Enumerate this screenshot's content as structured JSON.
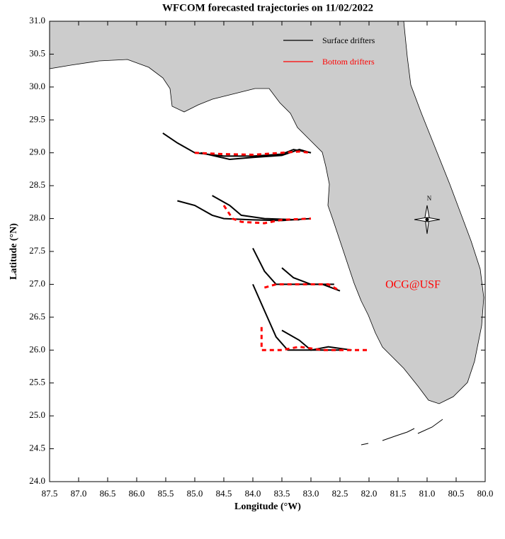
{
  "chart_data": {
    "type": "map",
    "title": "WFCOM forecasted trajectories on 11/02/2022",
    "xlabel": "Longitude (°W)",
    "ylabel": "Latitude (°N)",
    "xlim": [
      87.5,
      80.0
    ],
    "ylim": [
      24.0,
      31.0
    ],
    "xticks": [
      87.5,
      {
        "value": 87,
        "label": "87.0"
      },
      86.5,
      {
        "value": 86,
        "label": "86.0"
      },
      85.5,
      {
        "value": 85,
        "label": "85.0"
      },
      84.5,
      {
        "value": 84,
        "label": "84.0"
      },
      83.5,
      {
        "value": 83,
        "label": "83.0"
      },
      82.5,
      {
        "value": 82,
        "label": "82.0"
      },
      81.5,
      {
        "value": 81,
        "label": "81.0"
      },
      80.5,
      {
        "value": 80,
        "label": "80.0"
      }
    ],
    "yticks": [
      {
        "value": 24,
        "label": "24.0"
      },
      24.5,
      {
        "value": 25,
        "label": "25.0"
      },
      25.5,
      {
        "value": 26,
        "label": "26.0"
      },
      26.5,
      {
        "value": 27,
        "label": "27.0"
      },
      27.5,
      {
        "value": 28,
        "label": "28.0"
      },
      28.5,
      {
        "value": 29,
        "label": "29.0"
      },
      29.5,
      {
        "value": 30,
        "label": "30.0"
      },
      30.5,
      {
        "value": 31,
        "label": "31.0"
      }
    ],
    "series": [
      {
        "name": "Surface drifters",
        "color": "#000000",
        "dashed": false,
        "tracks": [
          {
            "x": [
              85.55,
              85.3,
              85.0,
              84.5,
              84.0,
              83.5,
              83.3,
              83.0
            ],
            "y": [
              29.3,
              29.15,
              29.0,
              28.95,
              28.95,
              28.98,
              29.05,
              29.0
            ]
          },
          {
            "x": [
              84.9,
              84.4,
              84.0,
              83.5,
              83.2,
              83.0
            ],
            "y": [
              29.0,
              28.9,
              28.93,
              28.96,
              29.05,
              29.0
            ]
          },
          {
            "x": [
              85.3,
              85.0,
              84.7,
              84.5,
              84.0,
              83.5,
              83.0
            ],
            "y": [
              28.27,
              28.2,
              28.05,
              28.0,
              27.98,
              27.97,
              28.0
            ]
          },
          {
            "x": [
              84.7,
              84.4,
              84.2,
              83.8,
              83.2
            ],
            "y": [
              28.35,
              28.2,
              28.05,
              28.0,
              27.98
            ]
          },
          {
            "x": [
              84.0,
              83.8,
              83.6,
              83.2,
              82.8,
              82.5
            ],
            "y": [
              27.55,
              27.2,
              27.0,
              27.0,
              27.0,
              26.9
            ]
          },
          {
            "x": [
              83.5,
              83.3,
              83.0,
              82.6
            ],
            "y": [
              27.25,
              27.1,
              27.0,
              27.0
            ]
          },
          {
            "x": [
              84.0,
              83.8,
              83.6,
              83.4,
              83.0,
              82.5
            ],
            "y": [
              27.0,
              26.6,
              26.2,
              26.0,
              26.0,
              26.0
            ]
          },
          {
            "x": [
              83.5,
              83.2,
              83.0,
              82.7,
              82.3
            ],
            "y": [
              26.3,
              26.15,
              26.0,
              26.05,
              26.0
            ]
          }
        ]
      },
      {
        "name": "Bottom drifters",
        "color": "#ff0000",
        "dashed": true,
        "tracks": [
          {
            "x": [
              85.0,
              84.5,
              84.0,
              83.5,
              83.2,
              83.0
            ],
            "y": [
              29.0,
              28.98,
              28.97,
              29.0,
              29.02,
              29.0
            ]
          },
          {
            "x": [
              84.5,
              84.35,
              84.2,
              83.8,
              83.5,
              83.0
            ],
            "y": [
              28.2,
              28.0,
              27.95,
              27.93,
              27.98,
              28.0
            ]
          },
          {
            "x": [
              83.8,
              83.6,
              83.0,
              82.7,
              82.5
            ],
            "y": [
              26.95,
              27.0,
              27.0,
              27.0,
              26.9
            ]
          },
          {
            "x": [
              83.85,
              83.85,
              83.5,
              83.2,
              82.8,
              82.3,
              82.0
            ],
            "y": [
              26.35,
              26.0,
              26.0,
              26.05,
              26.0,
              26.0,
              26.0
            ]
          }
        ]
      }
    ],
    "compass_label": "N",
    "annotation": "OCG@USF"
  }
}
